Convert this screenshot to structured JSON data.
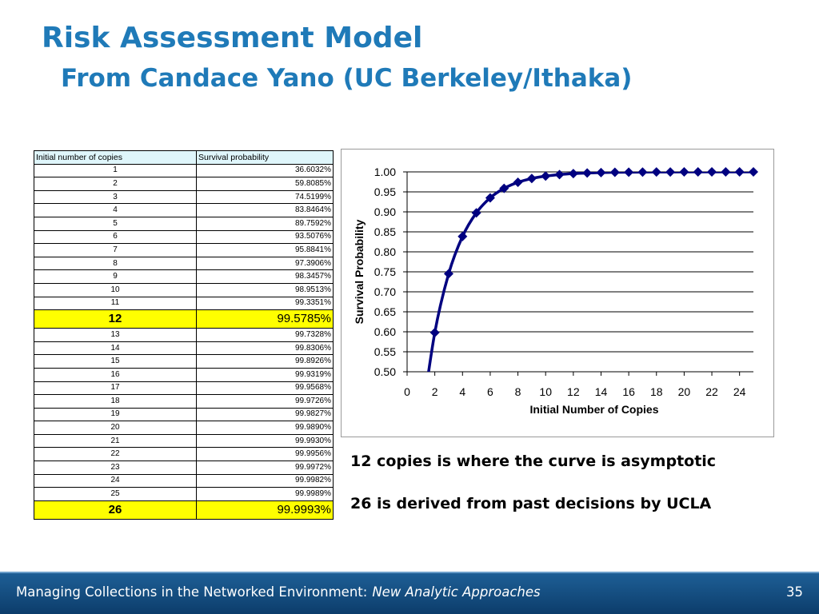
{
  "slide": {
    "title": "Risk Assessment Model",
    "subtitle": "From Candace Yano (UC Berkeley/Ithaka)"
  },
  "table": {
    "headers": [
      "Initial number of copies",
      "Survival probability"
    ],
    "rows": [
      {
        "copies": "1",
        "prob": "36.6032%"
      },
      {
        "copies": "2",
        "prob": "59.8085%"
      },
      {
        "copies": "3",
        "prob": "74.5199%"
      },
      {
        "copies": "4",
        "prob": "83.8464%"
      },
      {
        "copies": "5",
        "prob": "89.7592%"
      },
      {
        "copies": "6",
        "prob": "93.5076%"
      },
      {
        "copies": "7",
        "prob": "95.8841%"
      },
      {
        "copies": "8",
        "prob": "97.3906%"
      },
      {
        "copies": "9",
        "prob": "98.3457%"
      },
      {
        "copies": "10",
        "prob": "98.9513%"
      },
      {
        "copies": "11",
        "prob": "99.3351%"
      },
      {
        "copies": "12",
        "prob": "99.5785%",
        "highlight": true
      },
      {
        "copies": "13",
        "prob": "99.7328%"
      },
      {
        "copies": "14",
        "prob": "99.8306%"
      },
      {
        "copies": "15",
        "prob": "99.8926%"
      },
      {
        "copies": "16",
        "prob": "99.9319%"
      },
      {
        "copies": "17",
        "prob": "99.9568%"
      },
      {
        "copies": "18",
        "prob": "99.9726%"
      },
      {
        "copies": "19",
        "prob": "99.9827%"
      },
      {
        "copies": "20",
        "prob": "99.9890%"
      },
      {
        "copies": "21",
        "prob": "99.9930%"
      },
      {
        "copies": "22",
        "prob": "99.9956%"
      },
      {
        "copies": "23",
        "prob": "99.9972%"
      },
      {
        "copies": "24",
        "prob": "99.9982%"
      },
      {
        "copies": "25",
        "prob": "99.9989%"
      },
      {
        "copies": "26",
        "prob": "99.9993%",
        "highlight": true
      }
    ],
    "highlight_color": "#ffff00",
    "header_color": "#dff6fb"
  },
  "chart_data": {
    "type": "line",
    "xlabel": "Initial Number of Copies",
    "ylabel": "Survival Probability",
    "xlim": [
      0,
      25
    ],
    "ylim": [
      0.5,
      1.0
    ],
    "x_ticks": [
      "0",
      "2",
      "4",
      "6",
      "8",
      "10",
      "12",
      "14",
      "16",
      "18",
      "20",
      "22",
      "24"
    ],
    "y_ticks": [
      "0.50",
      "0.55",
      "0.60",
      "0.65",
      "0.70",
      "0.75",
      "0.80",
      "0.85",
      "0.90",
      "0.95",
      "1.00"
    ],
    "grid": "horizontal",
    "marker": "diamond",
    "line_color": "#000080",
    "series": [
      {
        "x": [
          1,
          2,
          3,
          4,
          5,
          6,
          7,
          8,
          9,
          10,
          11,
          12,
          13,
          14,
          15,
          16,
          17,
          18,
          19,
          20,
          21,
          22,
          23,
          24,
          25
        ],
        "values": [
          0.366032,
          0.598085,
          0.745199,
          0.838464,
          0.897592,
          0.935076,
          0.958841,
          0.973906,
          0.983457,
          0.989513,
          0.993351,
          0.995785,
          0.997328,
          0.998306,
          0.998926,
          0.999319,
          0.999568,
          0.999726,
          0.999827,
          0.99989,
          0.99993,
          0.999956,
          0.999972,
          0.999982,
          0.999989
        ]
      }
    ]
  },
  "notes": {
    "note1": "12 copies is where the curve is asymptotic",
    "note2": "26 is derived from past decisions by UCLA"
  },
  "footer": {
    "text": "Managing Collections in the Networked Environment:",
    "italic": "New Analytic Approaches",
    "page": "35"
  }
}
